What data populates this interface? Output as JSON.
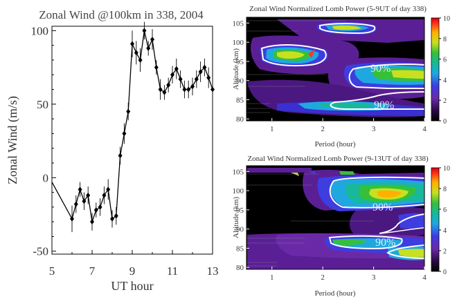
{
  "chart_data": [
    {
      "type": "line",
      "title": "Zonal Wind @100km in 338, 2004",
      "xlabel": "UT hour",
      "ylabel": "Zonal Wind (m/s)",
      "xlim": [
        5,
        13
      ],
      "ylim": [
        -52,
        103
      ],
      "xticks": [
        5,
        7,
        9,
        11,
        13
      ],
      "xtick_labels": [
        "5",
        "7",
        "9",
        "11",
        "13"
      ],
      "yticks": [
        -50,
        0,
        50,
        100
      ],
      "ytick_labels": [
        "-50",
        "0",
        "50",
        "100"
      ],
      "grid": false,
      "series": [
        {
          "x": [
            5.0,
            6.0,
            6.2,
            6.4,
            6.6,
            6.8,
            7.0,
            7.2,
            7.4,
            7.6,
            7.8,
            8.0,
            8.2,
            8.4,
            8.6,
            8.8,
            9.0,
            9.2,
            9.4,
            9.6,
            9.8,
            10.0,
            10.2,
            10.4,
            10.6,
            10.8,
            11.0,
            11.2,
            11.4,
            11.6,
            11.8,
            12.0,
            12.2,
            12.4,
            12.6,
            12.8,
            13.0
          ],
          "y": [
            -3,
            -28,
            -18,
            -8,
            -16,
            -12,
            -30,
            -22,
            -20,
            -12,
            -8,
            -28,
            -26,
            15,
            30,
            45,
            91,
            85,
            80,
            100,
            88,
            94,
            75,
            60,
            58,
            63,
            70,
            74,
            67,
            60,
            60,
            62,
            67,
            72,
            75,
            68,
            60
          ],
          "error": [
            0,
            9,
            6,
            5,
            6,
            6,
            6,
            5,
            6,
            6,
            7,
            6,
            6,
            6,
            7,
            6,
            9,
            8,
            8,
            6,
            5,
            7,
            5,
            7,
            5,
            5,
            6,
            7,
            6,
            6,
            6,
            6,
            6,
            7,
            6,
            7,
            5
          ],
          "marker": "diamond",
          "color": "#000000"
        }
      ]
    },
    {
      "type": "heatmap",
      "title": "Zonal Wind Normalized Lomb Power (5-9UT of day 338)",
      "xlabel": "Period (hour)",
      "ylabel": "Altitude (km)",
      "xlim": [
        0.5,
        4
      ],
      "ylim": [
        79.5,
        106.5
      ],
      "xticks": [
        1,
        2,
        3,
        4
      ],
      "yticks": [
        80,
        85,
        90,
        95,
        100,
        105
      ],
      "colorbar": {
        "min": 0,
        "max": 10,
        "ticks": [
          0,
          2,
          4,
          6,
          8,
          10
        ]
      },
      "contour_labels": [
        "90%",
        "90%"
      ]
    },
    {
      "type": "heatmap",
      "title": "Zonal Wind Normalized Lomb Power (9-13UT of day 338)",
      "xlabel": "Period (hour)",
      "ylabel": "Altitude (km)",
      "xlim": [
        0.5,
        4
      ],
      "ylim": [
        79.5,
        106.5
      ],
      "xticks": [
        1,
        2,
        3,
        4
      ],
      "yticks": [
        80,
        85,
        90,
        95,
        100,
        105
      ],
      "colorbar": {
        "min": 0,
        "max": 10,
        "ticks": [
          0,
          2,
          4,
          6,
          8,
          10
        ]
      },
      "contour_labels": [
        "90%",
        "90%"
      ]
    }
  ]
}
